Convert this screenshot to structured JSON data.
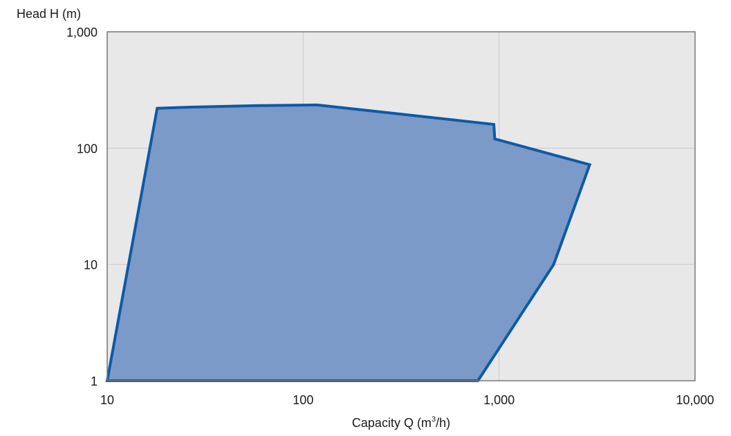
{
  "chart_data": {
    "type": "area",
    "ylabel": "Head H (m)",
    "xlabel_main": "Capacity Q (m",
    "xlabel_sup": "3",
    "xlabel_tail": "/h)",
    "x_scale": "log",
    "y_scale": "log",
    "xlim": [
      10,
      10000
    ],
    "ylim": [
      1,
      1000
    ],
    "x_ticks": [
      10,
      100,
      1000,
      10000
    ],
    "x_tick_labels": [
      "10",
      "100",
      "1,000",
      "10,000"
    ],
    "y_ticks": [
      1,
      10,
      100,
      1000
    ],
    "y_tick_labels": [
      "1",
      "10",
      "100",
      "1,000"
    ],
    "grid": true,
    "series": [
      {
        "fill_color": "#7b9ac8",
        "line_color": "#0d5aa6",
        "points": [
          {
            "x": 10,
            "y": 1
          },
          {
            "x": 18,
            "y": 220
          },
          {
            "x": 27,
            "y": 225
          },
          {
            "x": 60,
            "y": 232
          },
          {
            "x": 118,
            "y": 235
          },
          {
            "x": 940,
            "y": 160
          },
          {
            "x": 950,
            "y": 120
          },
          {
            "x": 2900,
            "y": 72
          },
          {
            "x": 1900,
            "y": 10
          },
          {
            "x": 780,
            "y": 1
          }
        ]
      }
    ]
  },
  "colors": {
    "plot_background": "#e8e8e8",
    "grid": "#c9c9c9",
    "frame": "#777777"
  }
}
